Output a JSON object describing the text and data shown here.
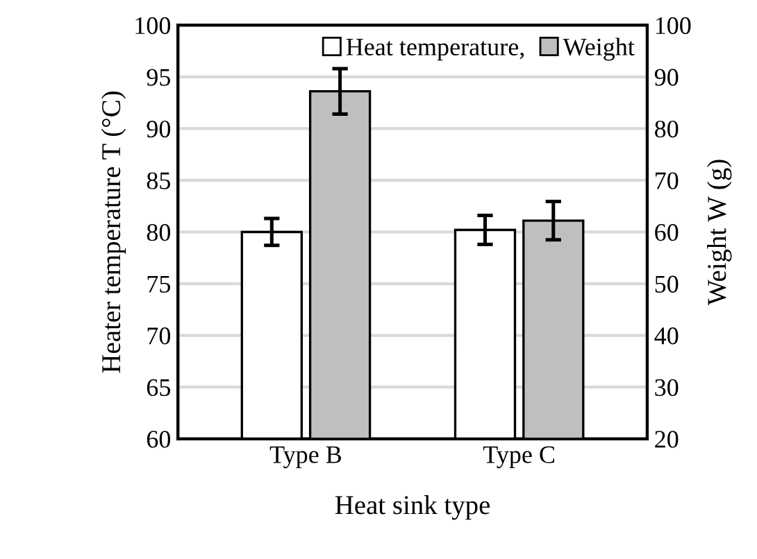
{
  "chart_data": {
    "type": "bar",
    "xlabel": "Heat sink type",
    "ylabel": "Heater temperature T (°C)",
    "y2label": "Weight W (g)",
    "categories": [
      "Type B",
      "Type C"
    ],
    "series": [
      {
        "name": "Heat temperature,",
        "color": "#ffffff",
        "values": [
          80.0,
          80.2
        ],
        "errors": [
          1.3,
          1.4
        ]
      },
      {
        "name": "Weight",
        "color": "#bfbfbf",
        "values": [
          87.2,
          62.2
        ],
        "errors": [
          4.4,
          3.7
        ],
        "axis": "y2"
      }
    ],
    "ylim": [
      60,
      100
    ],
    "yticks": [
      60,
      65,
      70,
      75,
      80,
      85,
      90,
      95,
      100
    ],
    "y2lim": [
      20,
      100
    ],
    "y2ticks": [
      20,
      30,
      40,
      50,
      60,
      70,
      80,
      90,
      100
    ],
    "grid": "y",
    "legend": "top right"
  }
}
